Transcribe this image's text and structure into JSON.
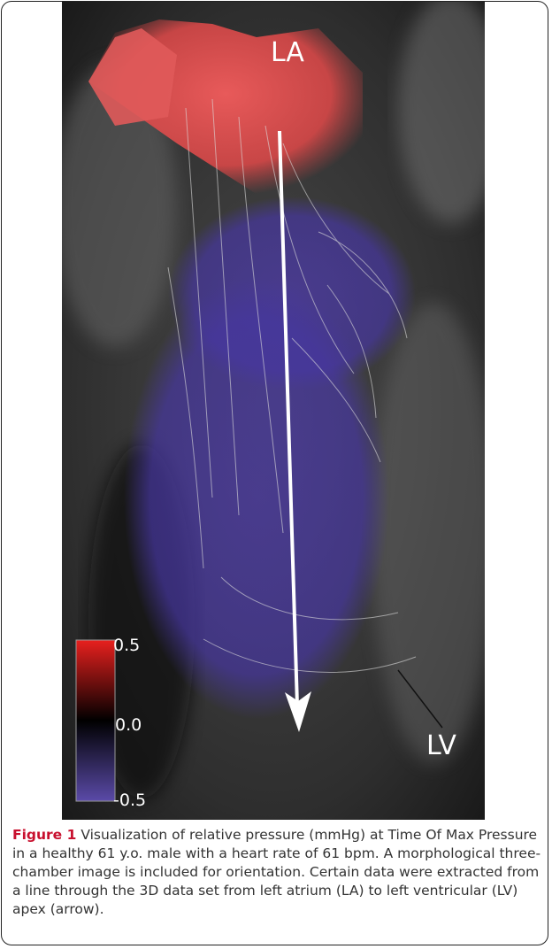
{
  "figure": {
    "labels": {
      "top": "LA",
      "bottom": "LV"
    },
    "colorbar": {
      "ticks": [
        "0.5",
        "0.0",
        "-0.5"
      ]
    },
    "caption": {
      "label": "Figure 1",
      "text": "Visualization of relative pressure (mmHg) at Time Of Max Pressure in a healthy 61 y.o. male with a heart rate of 61 bpm. A morphological three-chamber image is included for orientation. Certain data were extracted from a line through the 3D data set from left atrium (LA) to left ventricular (LV) apex (arrow)."
    }
  }
}
